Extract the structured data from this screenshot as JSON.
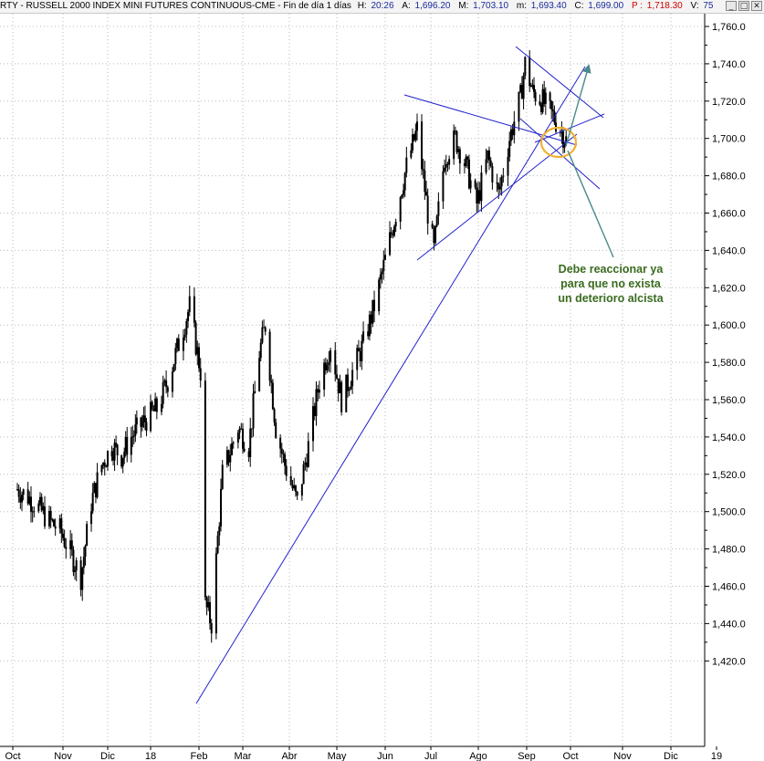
{
  "header": {
    "symbol": "RTY - RUSSELL 2000 INDEX MINI FUTURES CONTINUOUS-CME - Fin de día 1 días",
    "h_label": "H:",
    "h_value": "20:26",
    "a_label": "A:",
    "a_value": "1,696.20",
    "m_label": "M:",
    "m_value": "1,703.10",
    "n_label": "m:",
    "n_value": "1,693.40",
    "c_label": "C:",
    "c_value": "1,699.00",
    "p_label": "P :",
    "p_value": "1,718.30",
    "v_label": "V:",
    "v_value": "75",
    "window_buttons": [
      "_",
      "□",
      "✕"
    ]
  },
  "annotation": {
    "lines": [
      "Debe reaccionar ya",
      "para que no exista",
      "un deterioro alcista"
    ],
    "color": "#3a6b1f"
  },
  "colors": {
    "candles": "#000000",
    "trendlines": "#2222cc",
    "arrow": "#4a8a8a",
    "circle": "#f0b030",
    "grid": "#b8b8b8",
    "header_text": "#000000",
    "header_value": "#1a2a9a",
    "header_p": "#cc0000"
  },
  "chart_data": {
    "type": "candlestick",
    "x_ticks": [
      "Oct",
      "Nov",
      "Dic",
      "18",
      "Feb",
      "Mar",
      "Abr",
      "May",
      "Jun",
      "Jul",
      "Ago",
      "Sep",
      "Oct",
      "Nov",
      "Dic",
      "19"
    ],
    "y_ticks": [
      "1,760.0",
      "1,740.0",
      "1,720.0",
      "1,700.0",
      "1,680.0",
      "1,660.0",
      "1,640.0",
      "1,620.0",
      "1,600.0",
      "1,580.0",
      "1,560.0",
      "1,540.0",
      "1,520.0",
      "1,500.0",
      "1,480.0",
      "1,460.0",
      "1,440.0",
      "1,420.0"
    ],
    "ylim": [
      1405,
      1768
    ],
    "grid": true,
    "approx_daily_close_path": [
      [
        "2017-10-02",
        1512
      ],
      [
        "2017-10-09",
        1508
      ],
      [
        "2017-10-16",
        1502
      ],
      [
        "2017-10-23",
        1495
      ],
      [
        "2017-10-30",
        1490
      ],
      [
        "2017-11-06",
        1478
      ],
      [
        "2017-11-13",
        1465
      ],
      [
        "2017-11-20",
        1505
      ],
      [
        "2017-11-27",
        1525
      ],
      [
        "2017-12-04",
        1535
      ],
      [
        "2017-12-11",
        1530
      ],
      [
        "2017-12-18",
        1540
      ],
      [
        "2017-12-27",
        1548
      ],
      [
        "2018-01-05",
        1555
      ],
      [
        "2018-01-12",
        1570
      ],
      [
        "2018-01-19",
        1590
      ],
      [
        "2018-01-26",
        1610
      ],
      [
        "2018-02-02",
        1575
      ],
      [
        "2018-02-05",
        1450
      ],
      [
        "2018-02-09",
        1440
      ],
      [
        "2018-02-16",
        1520
      ],
      [
        "2018-02-26",
        1545
      ],
      [
        "2018-03-05",
        1535
      ],
      [
        "2018-03-12",
        1585
      ],
      [
        "2018-03-16",
        1600
      ],
      [
        "2018-03-23",
        1545
      ],
      [
        "2018-03-29",
        1525
      ],
      [
        "2018-04-06",
        1505
      ],
      [
        "2018-04-13",
        1535
      ],
      [
        "2018-04-20",
        1570
      ],
      [
        "2018-04-27",
        1590
      ],
      [
        "2018-05-04",
        1560
      ],
      [
        "2018-05-11",
        1575
      ],
      [
        "2018-05-18",
        1590
      ],
      [
        "2018-05-25",
        1610
      ],
      [
        "2018-06-01",
        1635
      ],
      [
        "2018-06-08",
        1660
      ],
      [
        "2018-06-15",
        1685
      ],
      [
        "2018-06-22",
        1705
      ],
      [
        "2018-06-29",
        1660
      ],
      [
        "2018-07-03",
        1640
      ],
      [
        "2018-07-10",
        1690
      ],
      [
        "2018-07-17",
        1700
      ],
      [
        "2018-07-24",
        1685
      ],
      [
        "2018-07-31",
        1665
      ],
      [
        "2018-08-07",
        1690
      ],
      [
        "2018-08-14",
        1670
      ],
      [
        "2018-08-21",
        1700
      ],
      [
        "2018-08-28",
        1722
      ],
      [
        "2018-08-31",
        1740
      ],
      [
        "2018-09-05",
        1725
      ],
      [
        "2018-09-12",
        1720
      ],
      [
        "2018-09-19",
        1712
      ],
      [
        "2018-09-24",
        1705
      ],
      [
        "2018-09-28",
        1699
      ]
    ]
  }
}
